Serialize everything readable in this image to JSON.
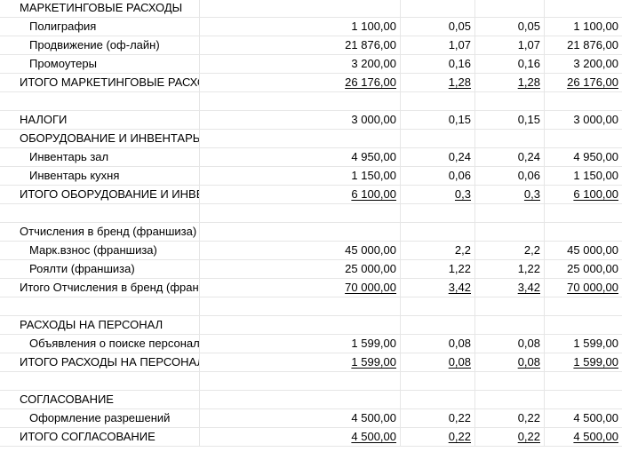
{
  "rows": [
    {
      "label": "МАРКЕТИНГОВЫЕ РАСХОДЫ",
      "indent": false,
      "total": false,
      "v1": "",
      "v2": "",
      "v3": "",
      "v4": ""
    },
    {
      "label": "Полиграфия",
      "indent": true,
      "total": false,
      "v1": "1 100,00",
      "v2": "0,05",
      "v3": "0,05",
      "v4": "1 100,00"
    },
    {
      "label": "Продвижение (оф-лайн)",
      "indent": true,
      "total": false,
      "v1": "21 876,00",
      "v2": "1,07",
      "v3": "1,07",
      "v4": "21 876,00"
    },
    {
      "label": "Промоутеры",
      "indent": true,
      "total": false,
      "v1": "3 200,00",
      "v2": "0,16",
      "v3": "0,16",
      "v4": "3 200,00"
    },
    {
      "label": "ИТОГО МАРКЕТИНГОВЫЕ РАСХОДЫ",
      "indent": false,
      "total": true,
      "v1": "26 176,00",
      "v2": "1,28",
      "v3": "1,28",
      "v4": "26 176,00"
    },
    {
      "label": "",
      "indent": false,
      "total": false,
      "v1": "",
      "v2": "",
      "v3": "",
      "v4": ""
    },
    {
      "label": "НАЛОГИ",
      "indent": false,
      "total": false,
      "v1": "3 000,00",
      "v2": "0,15",
      "v3": "0,15",
      "v4": "3 000,00"
    },
    {
      "label": "ОБОРУДОВАНИЕ И ИНВЕНТАРЬ",
      "indent": false,
      "total": false,
      "v1": "",
      "v2": "",
      "v3": "",
      "v4": ""
    },
    {
      "label": "Инвентарь зал",
      "indent": true,
      "total": false,
      "v1": "4 950,00",
      "v2": "0,24",
      "v3": "0,24",
      "v4": "4 950,00"
    },
    {
      "label": "Инвентарь кухня",
      "indent": true,
      "total": false,
      "v1": "1 150,00",
      "v2": "0,06",
      "v3": "0,06",
      "v4": "1 150,00"
    },
    {
      "label": "ИТОГО ОБОРУДОВАНИЕ И ИНВЕНТАРЬ",
      "indent": false,
      "total": true,
      "v1": "6 100,00",
      "v2": "0,3",
      "v3": "0,3",
      "v4": "6 100,00"
    },
    {
      "label": "",
      "indent": false,
      "total": false,
      "v1": "",
      "v2": "",
      "v3": "",
      "v4": ""
    },
    {
      "label": "Отчисления в бренд (франшиза)",
      "indent": false,
      "total": false,
      "v1": "",
      "v2": "",
      "v3": "",
      "v4": ""
    },
    {
      "label": "Марк.взнос (франшиза)",
      "indent": true,
      "total": false,
      "v1": "45 000,00",
      "v2": "2,2",
      "v3": "2,2",
      "v4": "45 000,00"
    },
    {
      "label": "Роялти (франшиза)",
      "indent": true,
      "total": false,
      "v1": "25 000,00",
      "v2": "1,22",
      "v3": "1,22",
      "v4": "25 000,00"
    },
    {
      "label": "Итого Отчисления в бренд (франшиза)",
      "indent": false,
      "total": true,
      "v1": "70 000,00",
      "v2": "3,42",
      "v3": "3,42",
      "v4": "70 000,00"
    },
    {
      "label": "",
      "indent": false,
      "total": false,
      "v1": "",
      "v2": "",
      "v3": "",
      "v4": ""
    },
    {
      "label": "РАСХОДЫ НА ПЕРСОНАЛ",
      "indent": false,
      "total": false,
      "v1": "",
      "v2": "",
      "v3": "",
      "v4": ""
    },
    {
      "label": "Объявления о поиске персонала",
      "indent": true,
      "total": false,
      "v1": "1 599,00",
      "v2": "0,08",
      "v3": "0,08",
      "v4": "1 599,00"
    },
    {
      "label": "ИТОГО РАСХОДЫ НА ПЕРСОНАЛ",
      "indent": false,
      "total": true,
      "v1": "1 599,00",
      "v2": "0,08",
      "v3": "0,08",
      "v4": "1 599,00"
    },
    {
      "label": "",
      "indent": false,
      "total": false,
      "v1": "",
      "v2": "",
      "v3": "",
      "v4": ""
    },
    {
      "label": "СОГЛАСОВАНИЕ",
      "indent": false,
      "total": false,
      "v1": "",
      "v2": "",
      "v3": "",
      "v4": ""
    },
    {
      "label": "Оформление разрешений",
      "indent": true,
      "total": false,
      "v1": "4 500,00",
      "v2": "0,22",
      "v3": "0,22",
      "v4": "4 500,00"
    },
    {
      "label": "ИТОГО СОГЛАСОВАНИЕ",
      "indent": false,
      "total": true,
      "v1": "4 500,00",
      "v2": "0,22",
      "v3": "0,22",
      "v4": "4 500,00"
    }
  ]
}
